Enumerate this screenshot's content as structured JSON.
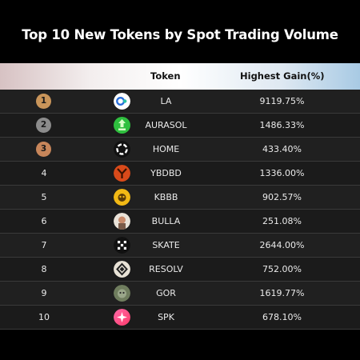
{
  "title": "Top 10 New Tokens by Spot Trading Volume",
  "colors": {
    "gold": "#c9955a",
    "silver": "#8c8c8c",
    "bronze": "#c8865a",
    "background": "#000000"
  },
  "table": {
    "headers": {
      "token": "Token",
      "gain": "Highest Gain(%)"
    },
    "rows": [
      {
        "rank": "1",
        "medal": "gold",
        "token": "LA",
        "gain": "9119.75%",
        "icon": "la-token-icon"
      },
      {
        "rank": "2",
        "medal": "silver",
        "token": "AURASOL",
        "gain": "1486.33%",
        "icon": "aurasol-token-icon"
      },
      {
        "rank": "3",
        "medal": "bronze",
        "token": "HOME",
        "gain": "433.40%",
        "icon": "home-token-icon"
      },
      {
        "rank": "4",
        "token": "YBDBD",
        "gain": "1336.00%",
        "icon": "ybdbd-token-icon"
      },
      {
        "rank": "5",
        "token": "KBBB",
        "gain": "902.57%",
        "icon": "kbbb-token-icon"
      },
      {
        "rank": "6",
        "token": "BULLA",
        "gain": "251.08%",
        "icon": "bulla-token-icon"
      },
      {
        "rank": "7",
        "token": "SKATE",
        "gain": "2644.00%",
        "icon": "skate-token-icon"
      },
      {
        "rank": "8",
        "token": "RESOLV",
        "gain": "752.00%",
        "icon": "resolv-token-icon"
      },
      {
        "rank": "9",
        "token": "GOR",
        "gain": "1619.77%",
        "icon": "gor-token-icon"
      },
      {
        "rank": "10",
        "token": "SPK",
        "gain": "678.10%",
        "icon": "spk-token-icon"
      }
    ]
  }
}
